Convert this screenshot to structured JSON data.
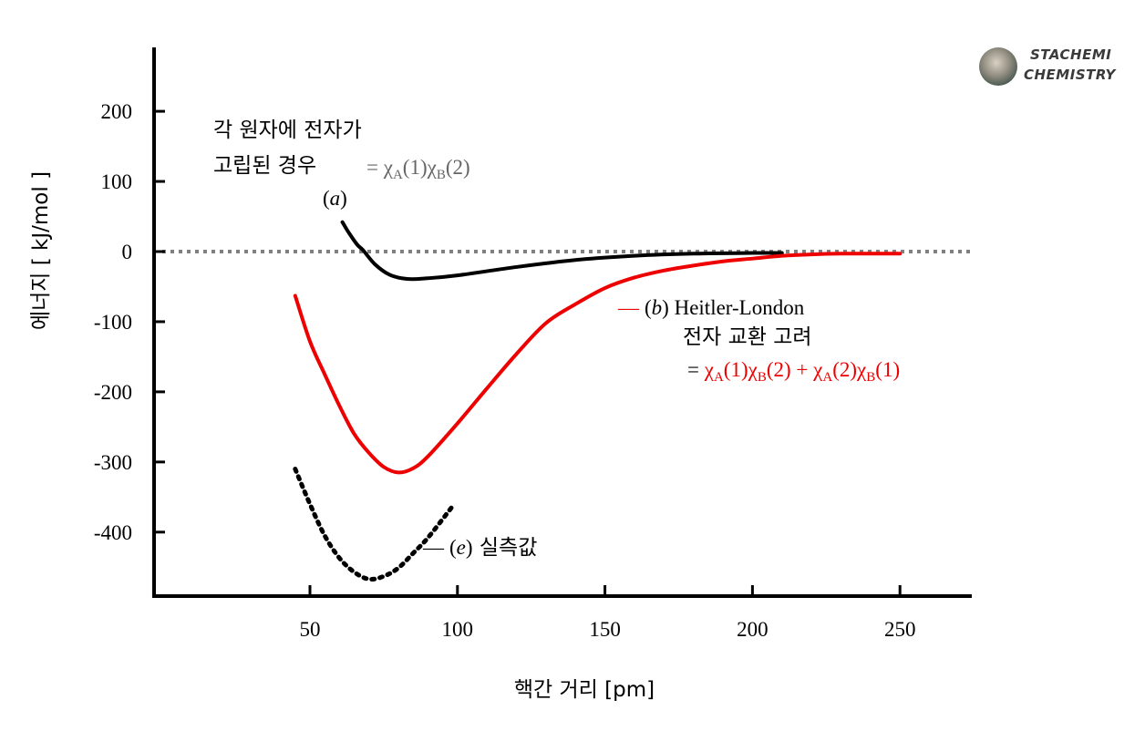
{
  "chart_data": {
    "type": "line",
    "xlabel": "핵간 거리 [pm]",
    "ylabel": "에너지 [ kJ/mol ]",
    "xlim": [
      0,
      280
    ],
    "ylim": [
      -490,
      290
    ],
    "xticks": [
      50,
      100,
      150,
      200,
      250
    ],
    "yticks": [
      200,
      100,
      0,
      -100,
      -200,
      -300,
      -400
    ],
    "series": [
      {
        "name": "(a)",
        "color": "#000000",
        "style": "solid",
        "x": [
          61,
          63,
          66,
          68,
          72,
          77,
          83,
          90,
          100,
          120,
          140,
          160,
          180,
          200,
          210
        ],
        "y": [
          42,
          28,
          10,
          2,
          -18,
          -33,
          -39,
          -38,
          -34,
          -22,
          -12,
          -6,
          -3,
          -2,
          -2
        ]
      },
      {
        "name": "(b) Heitler-London",
        "color": "#ee0000",
        "style": "solid",
        "x": [
          45,
          50,
          55,
          60,
          65,
          70,
          75,
          80,
          85,
          90,
          100,
          110,
          120,
          130,
          140,
          150,
          160,
          170,
          180,
          190,
          200,
          210,
          220,
          230,
          240,
          250
        ],
        "y": [
          -63,
          -128,
          -175,
          -220,
          -260,
          -287,
          -307,
          -315,
          -309,
          -292,
          -245,
          -195,
          -146,
          -102,
          -75,
          -52,
          -37,
          -27,
          -20,
          -14,
          -10,
          -6,
          -4,
          -3,
          -3,
          -3
        ]
      },
      {
        "name": "(e) 실측값",
        "color": "#000000",
        "style": "dotted",
        "x": [
          45,
          50,
          55,
          60,
          65,
          70,
          75,
          80,
          85,
          90,
          98
        ],
        "y": [
          -310,
          -360,
          -405,
          -437,
          -457,
          -467,
          -463,
          -451,
          -430,
          -408,
          -365
        ]
      }
    ],
    "zero_line": {
      "y": 0,
      "color": "#808080",
      "style": "dotted"
    },
    "annotations": {
      "a_line1": "각 원자에 전자가",
      "a_line2": "고립된 경우",
      "a_eq_prefix": "= ",
      "a_eq_chi1": "χ",
      "a_eq_sub1": "A",
      "a_eq_arg1": "(1)",
      "a_eq_chi2": "χ",
      "a_eq_sub2": "B",
      "a_eq_arg2": "(2)",
      "a_label_open": "(",
      "a_label_var": "a",
      "a_label_close": ")",
      "b_dash": "—",
      "b_label_open": "(",
      "b_label_var": "b",
      "b_label_close": ")",
      "b_name": " Heitler-London",
      "b_line2": "전자 교환 고려",
      "b_eq_prefix": "= ",
      "b_chi1": "χ",
      "b_sub1": "A",
      "b_arg1": "(1)",
      "b_chi2": "χ",
      "b_sub2": "B",
      "b_arg2": "(2) + ",
      "b_chi3": "χ",
      "b_sub3": "A",
      "b_arg3": "(2)",
      "b_chi4": "χ",
      "b_sub4": "B",
      "b_arg4": "(1)",
      "e_dash": "—",
      "e_label_open": "(",
      "e_label_var": "e",
      "e_label_close": ")",
      "e_text": " 실측값"
    },
    "colors": {
      "red": "#ee0000",
      "gray": "#666666",
      "zero": "#808080"
    }
  },
  "logo": {
    "line1": "STACHEMI",
    "line2": "CHEMISTRY"
  }
}
